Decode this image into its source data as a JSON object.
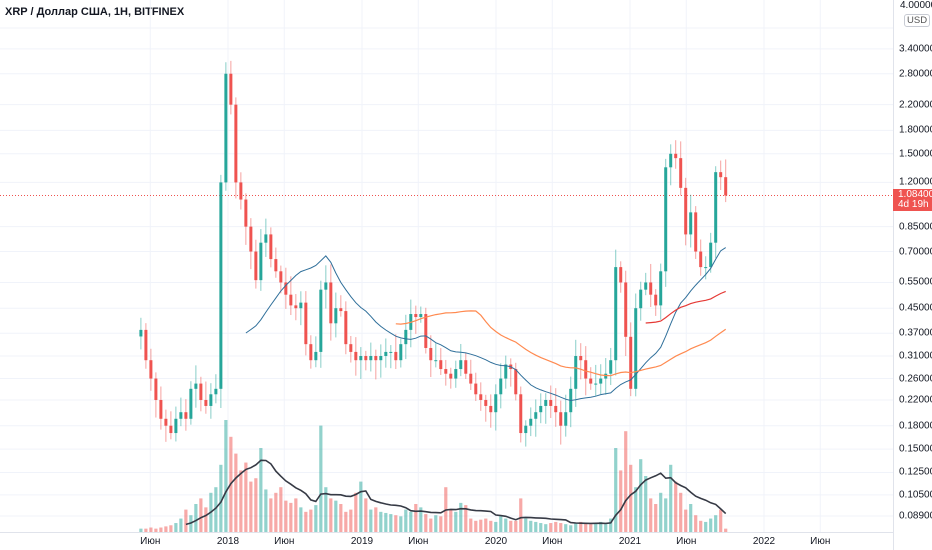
{
  "header": {
    "title": "XRP / Доллар США, 1H, BITFINEX"
  },
  "price_axis": {
    "currency_button": "USD",
    "top_label": "4.00000",
    "labels": [
      {
        "text": "4.00000",
        "value": 4.0
      },
      {
        "text": "3.40000",
        "value": 3.4
      },
      {
        "text": "2.80000",
        "value": 2.8
      },
      {
        "text": "2.20000",
        "value": 2.2
      },
      {
        "text": "1.80000",
        "value": 1.8
      },
      {
        "text": "1.50000",
        "value": 1.5
      },
      {
        "text": "1.20000",
        "value": 1.2
      },
      {
        "text": "0.85000",
        "value": 0.85
      },
      {
        "text": "0.70000",
        "value": 0.7
      },
      {
        "text": "0.55000",
        "value": 0.55
      },
      {
        "text": "0.45000",
        "value": 0.45
      },
      {
        "text": "0.37000",
        "value": 0.37
      },
      {
        "text": "0.31000",
        "value": 0.31
      },
      {
        "text": "0.26000",
        "value": 0.26
      },
      {
        "text": "0.22000",
        "value": 0.22
      },
      {
        "text": "0.18000",
        "value": 0.18
      },
      {
        "text": "0.15000",
        "value": 0.15
      },
      {
        "text": "0.12500",
        "value": 0.125
      },
      {
        "text": "0.10500",
        "value": 0.105
      },
      {
        "text": "0.08900",
        "value": 0.089
      }
    ],
    "current_price": "1.08400",
    "current_price_value": 1.084,
    "countdown": "4d 19h"
  },
  "time_axis": {
    "labels": [
      {
        "text": "Июн",
        "t": 2017.42
      },
      {
        "text": "2018",
        "t": 2018.0
      },
      {
        "text": "Июн",
        "t": 2018.42
      },
      {
        "text": "2019",
        "t": 2019.0
      },
      {
        "text": "Июн",
        "t": 2019.42
      },
      {
        "text": "2020",
        "t": 2020.0
      },
      {
        "text": "Июн",
        "t": 2020.42
      },
      {
        "text": "2021",
        "t": 2021.0
      },
      {
        "text": "Июн",
        "t": 2021.42
      },
      {
        "text": "2022",
        "t": 2022.0
      },
      {
        "text": "Июн",
        "t": 2022.42
      }
    ]
  },
  "colors": {
    "up": "#26a69a",
    "down": "#ef5350",
    "ma_fast": "#2f6f9a",
    "ma_mid": "#ff8a50",
    "ma_slow": "#e53935",
    "volume_ma": "#363a45",
    "grid": "#f0f3fa"
  },
  "chart_data": {
    "type": "candlestick",
    "start_t": 2017.35,
    "step_t": 0.0373,
    "closes": [
      0.38,
      0.3,
      0.26,
      0.22,
      0.19,
      0.18,
      0.17,
      0.19,
      0.2,
      0.19,
      0.24,
      0.25,
      0.22,
      0.21,
      0.23,
      0.24,
      1.2,
      2.8,
      2.2,
      1.2,
      1.05,
      0.85,
      0.7,
      0.56,
      0.75,
      0.8,
      0.66,
      0.6,
      0.55,
      0.5,
      0.46,
      0.45,
      0.47,
      0.34,
      0.3,
      0.32,
      0.52,
      0.55,
      0.4,
      0.45,
      0.44,
      0.34,
      0.32,
      0.3,
      0.31,
      0.3,
      0.31,
      0.3,
      0.31,
      0.32,
      0.32,
      0.3,
      0.34,
      0.38,
      0.43,
      0.42,
      0.43,
      0.33,
      0.3,
      0.3,
      0.28,
      0.27,
      0.26,
      0.28,
      0.3,
      0.27,
      0.25,
      0.23,
      0.22,
      0.21,
      0.2,
      0.23,
      0.26,
      0.29,
      0.28,
      0.23,
      0.17,
      0.18,
      0.19,
      0.2,
      0.21,
      0.22,
      0.21,
      0.2,
      0.18,
      0.2,
      0.24,
      0.31,
      0.3,
      0.26,
      0.25,
      0.25,
      0.26,
      0.27,
      0.3,
      0.62,
      0.55,
      0.36,
      0.24,
      0.45,
      0.52,
      0.55,
      0.5,
      0.46,
      0.6,
      1.35,
      1.5,
      1.45,
      1.15,
      0.8,
      0.95,
      0.7,
      0.62,
      0.62,
      0.75,
      1.3,
      1.25,
      1.084
    ],
    "volumes": [
      3,
      3,
      4,
      3,
      4,
      5,
      6,
      8,
      12,
      20,
      15,
      25,
      30,
      22,
      35,
      40,
      60,
      100,
      85,
      70,
      55,
      62,
      45,
      48,
      75,
      38,
      30,
      35,
      40,
      28,
      26,
      30,
      22,
      18,
      20,
      24,
      95,
      40,
      30,
      28,
      25,
      18,
      20,
      35,
      45,
      30,
      20,
      22,
      18,
      17,
      16,
      15,
      14,
      20,
      18,
      25,
      22,
      16,
      12,
      15,
      14,
      40,
      20,
      18,
      26,
      24,
      12,
      10,
      11,
      12,
      10,
      9,
      14,
      12,
      10,
      10,
      30,
      12,
      10,
      9,
      8,
      7,
      8,
      9,
      8,
      7,
      6,
      8,
      9,
      8,
      7,
      8,
      9,
      7,
      12,
      75,
      55,
      90,
      60,
      40,
      65,
      50,
      30,
      25,
      35,
      30,
      60,
      45,
      35,
      20,
      25,
      15,
      10,
      9,
      12,
      15,
      20,
      3
    ]
  }
}
